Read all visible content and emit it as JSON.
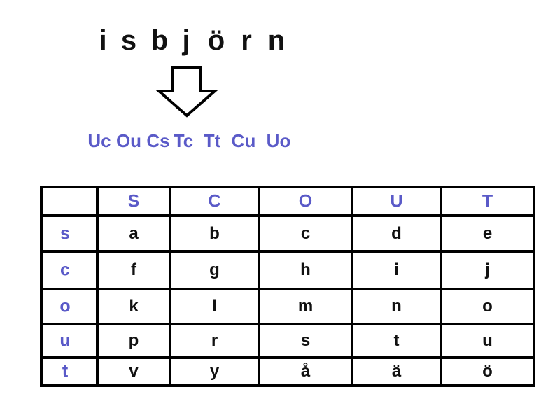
{
  "colors": {
    "accent": "#5a5ac8",
    "text": "#111111",
    "grid": "#000000"
  },
  "word_letters": [
    "i",
    "s",
    "b",
    "j",
    "ö",
    "r",
    "n"
  ],
  "arrow_icon": "down-arrow-icon",
  "encoded_pairs": [
    "Uc",
    "Ou",
    "Cs",
    "Tc",
    "Tt",
    "Cu",
    "Uo"
  ],
  "table": {
    "column_headers": [
      "S",
      "C",
      "O",
      "U",
      "T"
    ],
    "row_headers": [
      "s",
      "c",
      "o",
      "u",
      "t"
    ],
    "rows": [
      [
        "a",
        "b",
        "c",
        "d",
        "e"
      ],
      [
        "f",
        "g",
        "h",
        "i",
        "j"
      ],
      [
        "k",
        "l",
        "m",
        "n",
        "o"
      ],
      [
        "p",
        "r",
        "s",
        "t",
        "u"
      ],
      [
        "v",
        "y",
        "å",
        "ä",
        "ö"
      ]
    ]
  }
}
